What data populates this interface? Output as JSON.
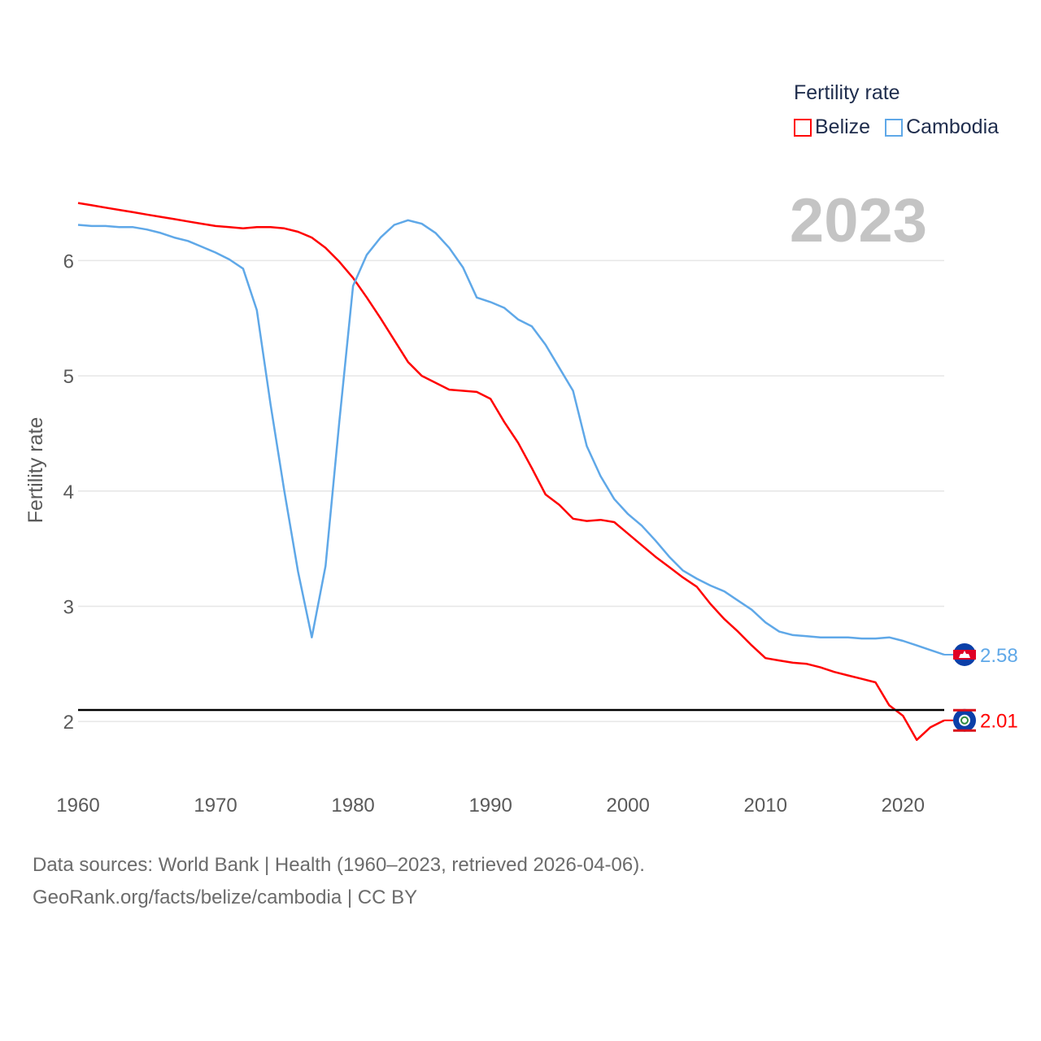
{
  "legend": {
    "title": "Fertility rate",
    "items": [
      {
        "label": "Belize",
        "color": "#ff0000"
      },
      {
        "label": "Cambodia",
        "color": "#5fa8e8"
      }
    ]
  },
  "year_label": "2023",
  "source": {
    "line1": "Data sources: World Bank | Health (1960–2023, retrieved 2026-04-06).",
    "line2": "GeoRank.org/facts/belize/cambodia | CC BY"
  },
  "chart_data": {
    "type": "line",
    "title": "",
    "xlabel": "",
    "ylabel": "Fertility rate",
    "xlim": [
      1960,
      2023
    ],
    "ylim": [
      1.5,
      6.85
    ],
    "x_ticks": [
      1960,
      1970,
      1980,
      1990,
      2000,
      2010,
      2020
    ],
    "y_ticks": [
      2,
      3,
      4,
      5,
      6
    ],
    "reference_line": 2.1,
    "grid": true,
    "x": [
      1960,
      1961,
      1962,
      1963,
      1964,
      1965,
      1966,
      1967,
      1968,
      1969,
      1970,
      1971,
      1972,
      1973,
      1974,
      1975,
      1976,
      1977,
      1978,
      1979,
      1980,
      1981,
      1982,
      1983,
      1984,
      1985,
      1986,
      1987,
      1988,
      1989,
      1990,
      1991,
      1992,
      1993,
      1994,
      1995,
      1996,
      1997,
      1998,
      1999,
      2000,
      2001,
      2002,
      2003,
      2004,
      2005,
      2006,
      2007,
      2008,
      2009,
      2010,
      2011,
      2012,
      2013,
      2014,
      2015,
      2016,
      2017,
      2018,
      2019,
      2020,
      2021,
      2022,
      2023
    ],
    "series": [
      {
        "name": "Belize",
        "color": "#ff0000",
        "end_label": "2.01",
        "values": [
          6.5,
          6.48,
          6.46,
          6.44,
          6.42,
          6.4,
          6.38,
          6.36,
          6.34,
          6.32,
          6.3,
          6.29,
          6.28,
          6.29,
          6.29,
          6.28,
          6.25,
          6.2,
          6.11,
          5.99,
          5.85,
          5.68,
          5.5,
          5.31,
          5.12,
          5.0,
          4.94,
          4.88,
          4.87,
          4.86,
          4.8,
          4.6,
          4.42,
          4.2,
          3.97,
          3.88,
          3.76,
          3.74,
          3.75,
          3.73,
          3.63,
          3.53,
          3.43,
          3.34,
          3.25,
          3.17,
          3.02,
          2.89,
          2.78,
          2.66,
          2.55,
          2.53,
          2.51,
          2.5,
          2.47,
          2.43,
          2.4,
          2.37,
          2.34,
          2.14,
          2.05,
          1.84,
          1.95,
          2.01
        ]
      },
      {
        "name": "Cambodia",
        "color": "#5fa8e8",
        "end_label": "2.58",
        "values": [
          6.31,
          6.3,
          6.3,
          6.29,
          6.29,
          6.27,
          6.24,
          6.2,
          6.17,
          6.12,
          6.07,
          6.01,
          5.93,
          5.57,
          4.75,
          4.0,
          3.3,
          2.73,
          3.35,
          4.6,
          5.78,
          6.05,
          6.2,
          6.31,
          6.35,
          6.32,
          6.24,
          6.11,
          5.94,
          5.68,
          5.64,
          5.59,
          5.49,
          5.43,
          5.27,
          5.07,
          4.87,
          4.39,
          4.13,
          3.93,
          3.8,
          3.7,
          3.57,
          3.43,
          3.31,
          3.24,
          3.18,
          3.13,
          3.05,
          2.97,
          2.86,
          2.78,
          2.75,
          2.74,
          2.73,
          2.73,
          2.73,
          2.72,
          2.72,
          2.73,
          2.7,
          2.66,
          2.62,
          2.58
        ]
      }
    ]
  }
}
